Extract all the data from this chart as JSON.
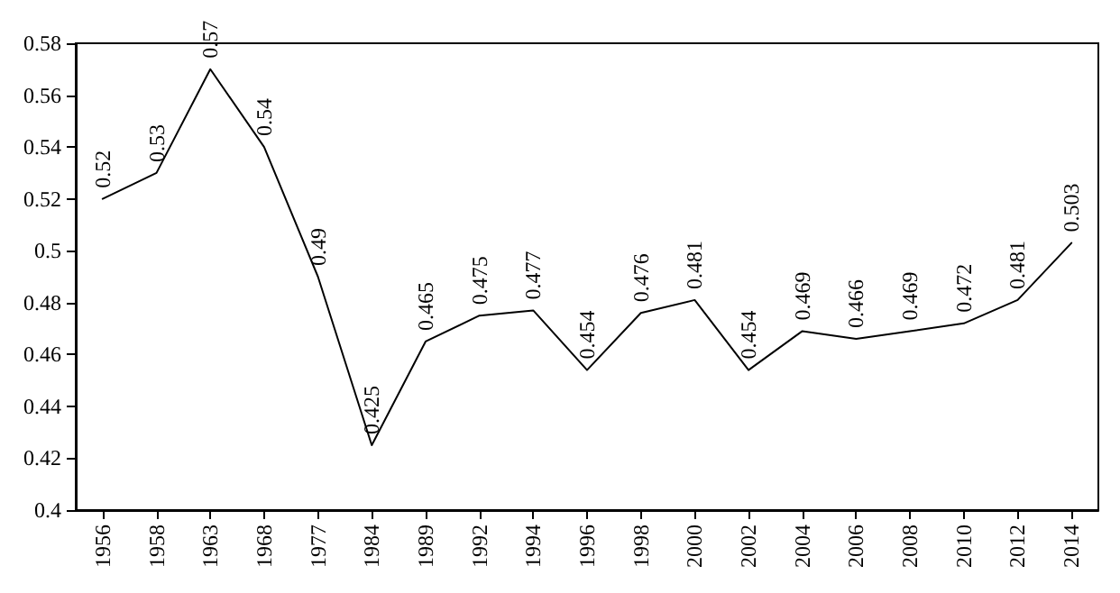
{
  "chart_data": {
    "type": "line",
    "categories": [
      "1956",
      "1958",
      "1963",
      "1968",
      "1977",
      "1984",
      "1989",
      "1992",
      "1994",
      "1996",
      "1998",
      "2000",
      "2002",
      "2004",
      "2006",
      "2008",
      "2010",
      "2012",
      "2014"
    ],
    "series": [
      {
        "color": "#000000",
        "values": [
          0.52,
          0.53,
          0.57,
          0.54,
          0.49,
          0.425,
          0.465,
          0.475,
          0.477,
          0.454,
          0.476,
          0.481,
          0.454,
          0.469,
          0.466,
          0.469,
          0.472,
          0.481,
          0.503
        ]
      }
    ],
    "ylim": [
      0.4,
      0.58
    ],
    "yticks": [
      0.4,
      0.42,
      0.44,
      0.46,
      0.48,
      0.5,
      0.52,
      0.54,
      0.56,
      0.58
    ],
    "data_labels": true,
    "grid": false,
    "marker": "none",
    "line_style": "solid"
  }
}
